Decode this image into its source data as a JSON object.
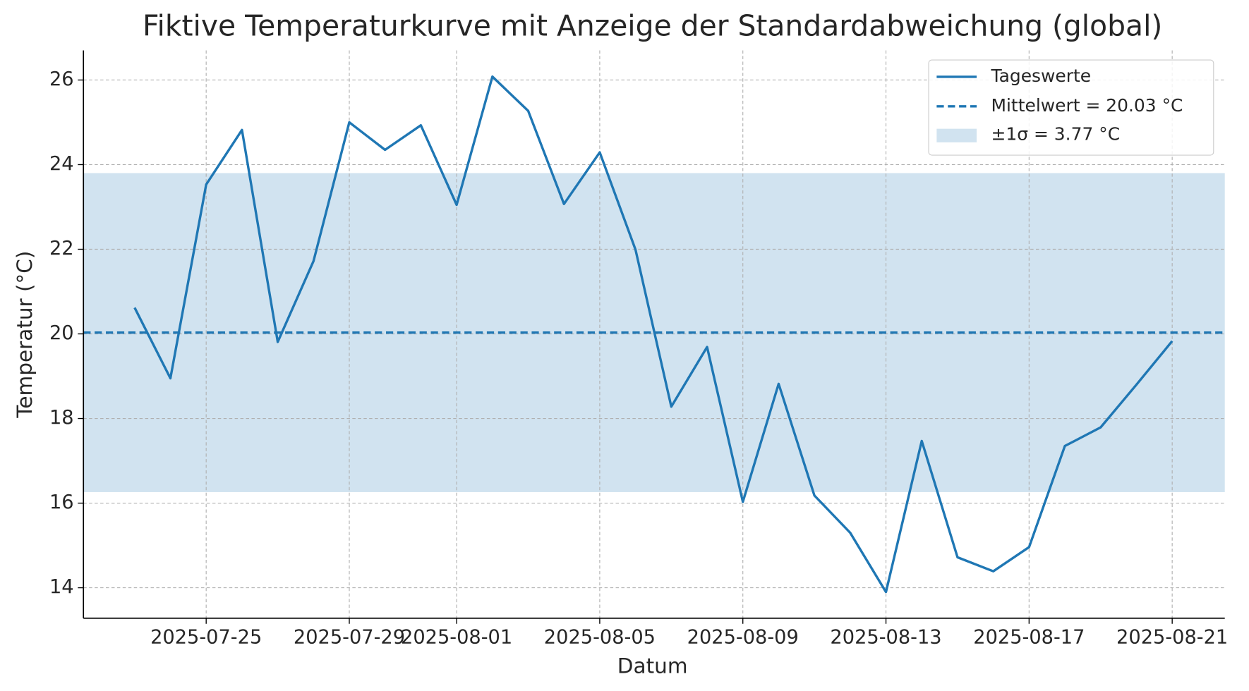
{
  "chart_data": {
    "type": "line",
    "title": "Fiktive Temperaturkurve mit Anzeige der Standardabweichung (global)",
    "x_label": "Datum",
    "y_label": "Temperatur (°C)",
    "x": [
      "2025-07-23",
      "2025-07-24",
      "2025-07-25",
      "2025-07-26",
      "2025-07-27",
      "2025-07-28",
      "2025-07-29",
      "2025-07-30",
      "2025-07-31",
      "2025-08-01",
      "2025-08-02",
      "2025-08-03",
      "2025-08-04",
      "2025-08-05",
      "2025-08-06",
      "2025-08-07",
      "2025-08-08",
      "2025-08-09",
      "2025-08-10",
      "2025-08-11",
      "2025-08-12",
      "2025-08-13",
      "2025-08-14",
      "2025-08-15",
      "2025-08-16",
      "2025-08-17",
      "2025-08-18",
      "2025-08-19",
      "2025-08-20",
      "2025-08-21"
    ],
    "series": [
      {
        "name": "Tageswerte",
        "color": "#1f77b4",
        "values": [
          20.62,
          18.95,
          23.53,
          24.82,
          19.81,
          21.72,
          25.0,
          24.35,
          24.93,
          23.05,
          26.08,
          25.27,
          23.07,
          24.29,
          21.99,
          18.28,
          19.69,
          16.03,
          18.82,
          16.18,
          15.3,
          13.9,
          17.47,
          14.72,
          14.39,
          14.96,
          17.35,
          17.79,
          18.8,
          19.83
        ]
      }
    ],
    "mean": 20.03,
    "std": 3.77,
    "mean_label": "Mittelwert = 20.03 °C",
    "std_label": "±1σ = 3.77 °C",
    "band_color": "#d1e3f0",
    "xlim": [
      "2025-07-21T13:40",
      "2025-08-22T11:17"
    ],
    "xticks": [
      "2025-07-25",
      "2025-07-29",
      "2025-08-01",
      "2025-08-05",
      "2025-08-09",
      "2025-08-13",
      "2025-08-17",
      "2025-08-21"
    ],
    "ylim": [
      13.28,
      26.7
    ],
    "yticks": [
      14,
      16,
      18,
      20,
      22,
      24,
      26
    ],
    "grid": true,
    "legend": "upper right"
  }
}
